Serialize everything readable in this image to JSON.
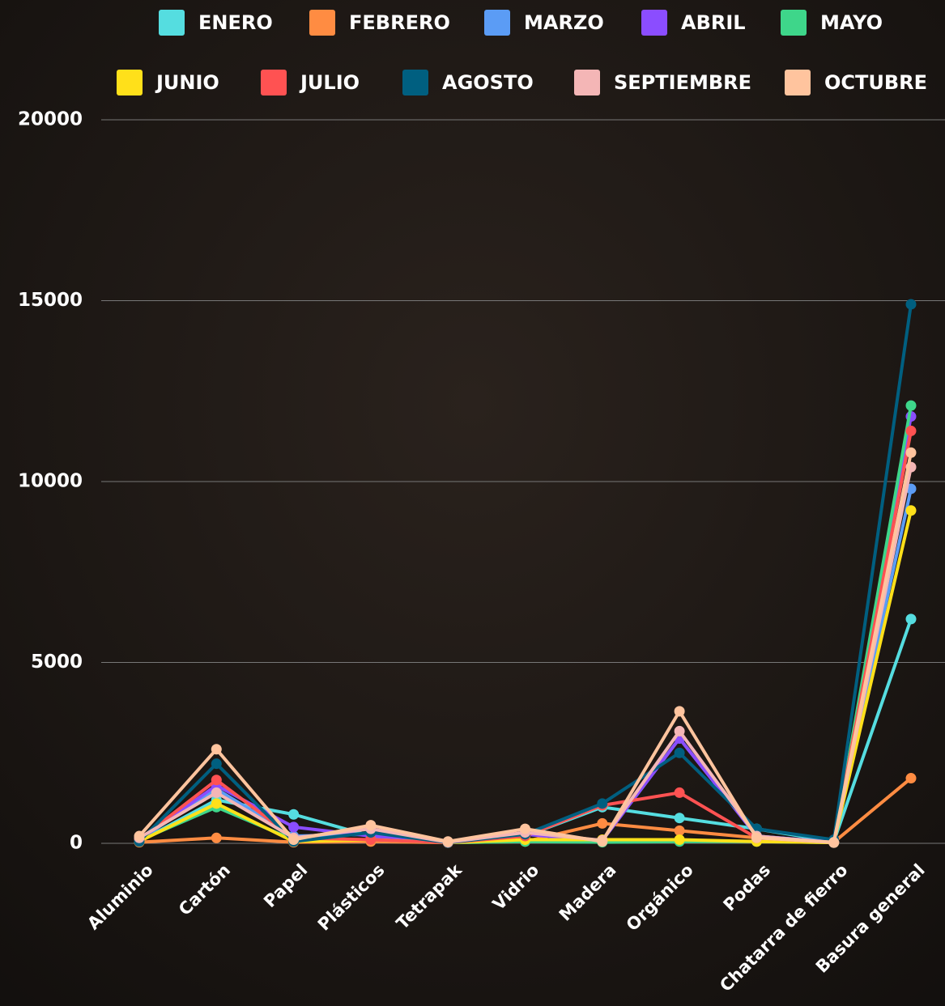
{
  "chart_data": {
    "type": "line",
    "categories": [
      "Aluminio",
      "Cartón",
      "Papel",
      "Plásticos",
      "Tetrapak",
      "Vidrio",
      "Madera",
      "Orgánico",
      "Podas",
      "Chatarra de fierro",
      "Basura general"
    ],
    "series": [
      {
        "name": "ENERO",
        "color": "#55dde0",
        "values": [
          50,
          1200,
          800,
          200,
          20,
          200,
          1000,
          700,
          400,
          50,
          6200
        ]
      },
      {
        "name": "FEBRERO",
        "color": "#ff8c42",
        "values": [
          30,
          150,
          30,
          50,
          20,
          50,
          550,
          350,
          150,
          30,
          1800
        ]
      },
      {
        "name": "MARZO",
        "color": "#5b9cf5",
        "values": [
          100,
          1500,
          200,
          250,
          20,
          250,
          80,
          2900,
          200,
          30,
          9800
        ]
      },
      {
        "name": "ABRIL",
        "color": "#8b4dff",
        "values": [
          100,
          1600,
          450,
          200,
          20,
          250,
          80,
          2900,
          200,
          30,
          11800
        ]
      },
      {
        "name": "MAYO",
        "color": "#3ed68a",
        "values": [
          80,
          1000,
          100,
          100,
          20,
          50,
          30,
          50,
          50,
          20,
          12100
        ]
      },
      {
        "name": "JUNIO",
        "color": "#ffe01a",
        "values": [
          50,
          1100,
          50,
          100,
          20,
          100,
          100,
          100,
          50,
          20,
          9200
        ]
      },
      {
        "name": "JULIO",
        "color": "#ff5252",
        "values": [
          100,
          1750,
          150,
          100,
          20,
          200,
          1050,
          1400,
          150,
          30,
          11400
        ]
      },
      {
        "name": "AGOSTO",
        "color": "#005f80",
        "values": [
          50,
          2200,
          50,
          300,
          20,
          250,
          1100,
          2500,
          400,
          100,
          14900
        ]
      },
      {
        "name": "SEPTIEMBRE",
        "color": "#f4b6b6",
        "values": [
          150,
          1400,
          150,
          400,
          30,
          300,
          80,
          3100,
          200,
          20,
          10400
        ]
      },
      {
        "name": "OCTUBRE",
        "color": "#ffc49e",
        "values": [
          200,
          2600,
          100,
          500,
          50,
          400,
          50,
          3650,
          150,
          30,
          10800
        ]
      }
    ],
    "ylim": [
      0,
      20000
    ],
    "yticks": [
      0,
      5000,
      10000,
      15000,
      20000
    ],
    "grid": true
  }
}
